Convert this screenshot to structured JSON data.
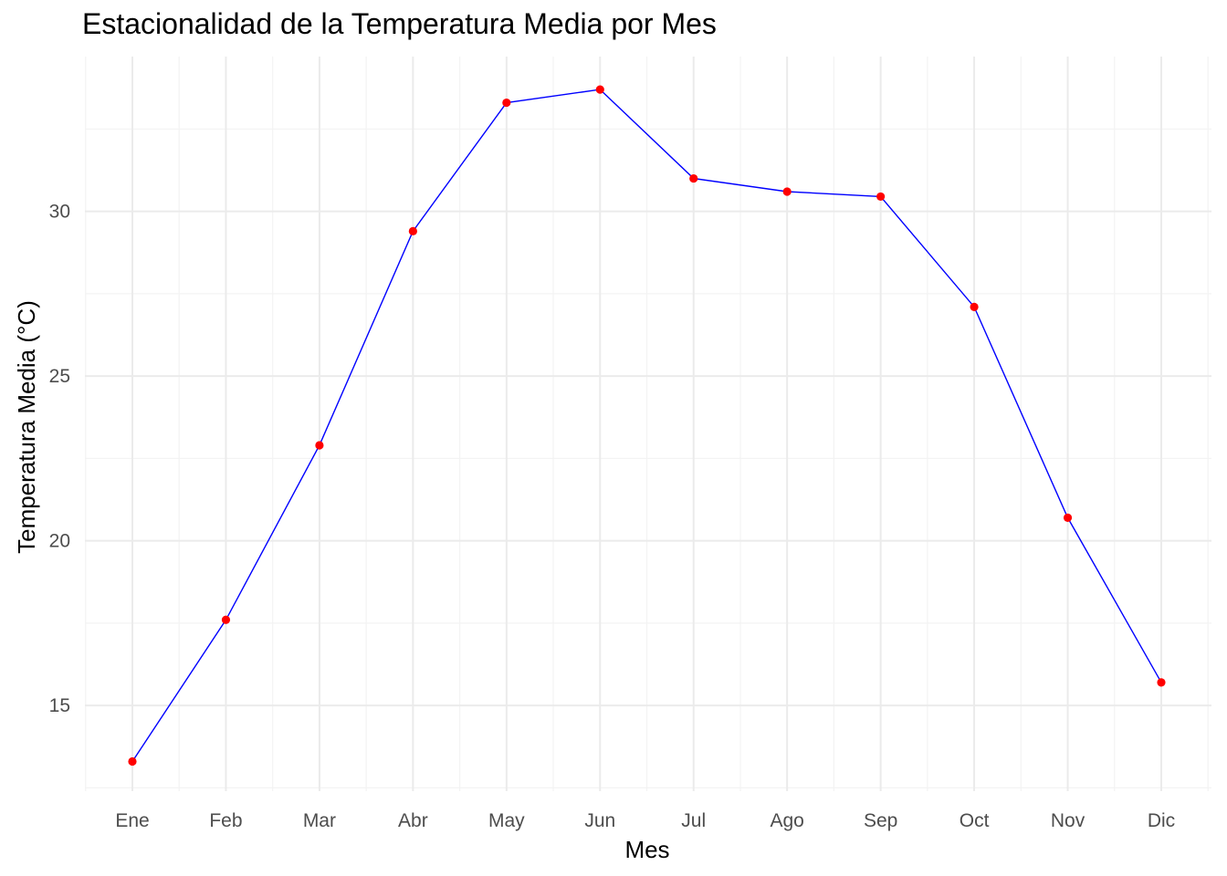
{
  "chart_data": {
    "type": "line",
    "title": "Estacionalidad de la Temperatura Media por Mes",
    "xlabel": "Mes",
    "ylabel": "Temperatura Media (°C)",
    "categories": [
      "Ene",
      "Feb",
      "Mar",
      "Abr",
      "May",
      "Jun",
      "Jul",
      "Ago",
      "Sep",
      "Oct",
      "Nov",
      "Dic"
    ],
    "series": [
      {
        "values": [
          13.3,
          17.6,
          22.9,
          29.4,
          33.3,
          33.7,
          31.0,
          30.6,
          30.45,
          27.1,
          20.7,
          15.7
        ]
      }
    ],
    "ylim": [
      12.4,
      34.7
    ],
    "yticks": [
      15,
      20,
      25,
      30
    ],
    "grid": true,
    "legend": "none",
    "colors": {
      "line": "#0000ff",
      "points": "#ff0000",
      "grid_major": "#ebebeb",
      "grid_minor": "#f3f3f3"
    }
  }
}
